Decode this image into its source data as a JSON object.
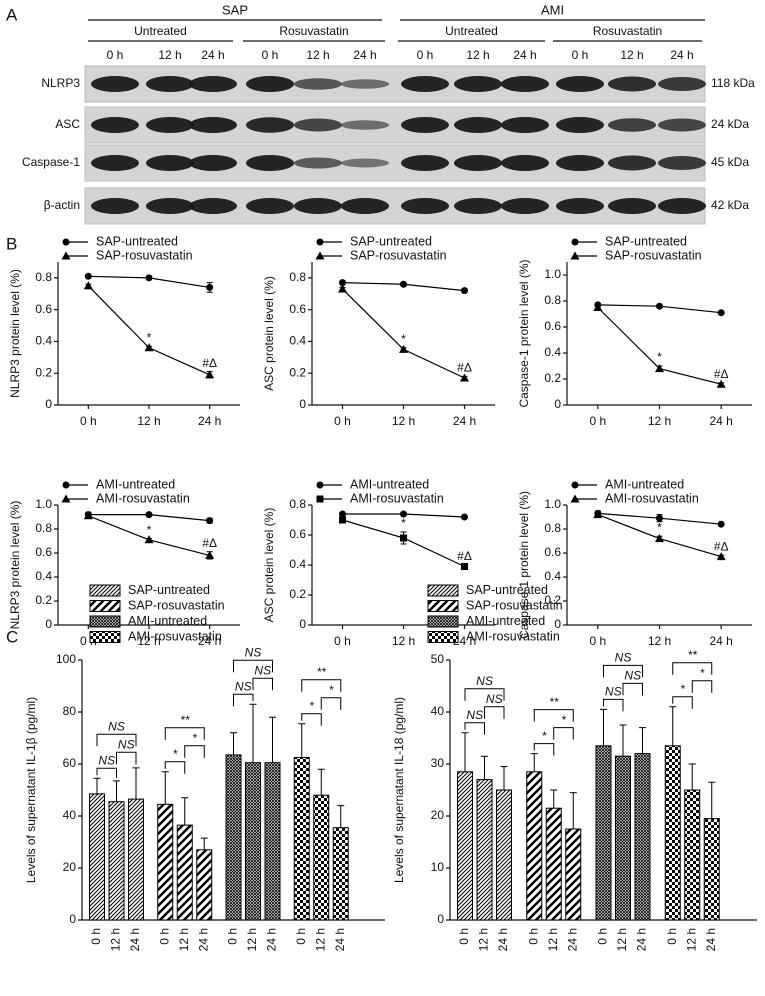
{
  "panels": [
    "A",
    "B",
    "C"
  ],
  "blot": {
    "groups": [
      {
        "label": "SAP",
        "subgroups": [
          {
            "label": "Untreated",
            "times": [
              "0 h",
              "12 h",
              "24 h"
            ]
          },
          {
            "label": "Rosuvastatin",
            "times": [
              "0 h",
              "12 h",
              "24 h"
            ]
          }
        ]
      },
      {
        "label": "AMI",
        "subgroups": [
          {
            "label": "Untreated",
            "times": [
              "0 h",
              "12 h",
              "24 h"
            ]
          },
          {
            "label": "Rosuvastatin",
            "times": [
              "0 h",
              "12 h",
              "24 h"
            ]
          }
        ]
      }
    ],
    "rows": [
      {
        "label": "NLRP3",
        "size": "118 kDa"
      },
      {
        "label": "ASC",
        "size": "24 kDa"
      },
      {
        "label": "Caspase-1",
        "size": "45 kDa"
      },
      {
        "label": "β-actin",
        "size": "42 kDa"
      }
    ]
  },
  "chart_data": [
    {
      "type": "line",
      "ylabel": "NLRP3 protein level (%)",
      "categories": [
        "0 h",
        "12 h",
        "24 h"
      ],
      "ylim": [
        0,
        0.9
      ],
      "yticks": [
        0,
        0.2,
        0.4,
        0.6,
        0.8
      ],
      "series": [
        {
          "name": "SAP-untreated",
          "color": "#000000",
          "marker": "circle",
          "values": [
            0.81,
            0.8,
            0.74
          ],
          "errors": [
            0.01,
            0.01,
            0.03
          ]
        },
        {
          "name": "SAP-rosuvastatin",
          "color": "#000000",
          "marker": "triangle",
          "values": [
            0.75,
            0.36,
            0.19
          ],
          "errors": [
            0.01,
            0.01,
            0.02
          ],
          "point_labels": [
            null,
            "*",
            "#Δ"
          ]
        }
      ]
    },
    {
      "type": "line",
      "ylabel": "ASC protein level (%)",
      "categories": [
        "0 h",
        "12 h",
        "24 h"
      ],
      "ylim": [
        0,
        0.9
      ],
      "yticks": [
        0,
        0.2,
        0.4,
        0.6,
        0.8
      ],
      "series": [
        {
          "name": "SAP-untreated",
          "color": "#000000",
          "marker": "circle",
          "values": [
            0.77,
            0.76,
            0.72
          ],
          "errors": [
            0.01,
            0.01,
            0.01
          ]
        },
        {
          "name": "SAP-rosuvastatin",
          "color": "#000000",
          "marker": "triangle",
          "values": [
            0.73,
            0.35,
            0.17
          ],
          "errors": [
            0.01,
            0.01,
            0.01
          ],
          "point_labels": [
            null,
            "*",
            "#Δ"
          ]
        }
      ]
    },
    {
      "type": "line",
      "ylabel": "Caspase-1 protein level (%)",
      "categories": [
        "0 h",
        "12 h",
        "24 h"
      ],
      "ylim": [
        0,
        1.1
      ],
      "yticks": [
        0,
        0.2,
        0.4,
        0.6,
        0.8,
        {
          "value": 1,
          "label": "1.0"
        }
      ],
      "series": [
        {
          "name": "SAP-untreated",
          "color": "#000000",
          "marker": "circle",
          "values": [
            0.77,
            0.76,
            0.71
          ],
          "errors": [
            0.01,
            0.01,
            0.01
          ]
        },
        {
          "name": "SAP-rosuvastatin",
          "color": "#000000",
          "marker": "triangle",
          "values": [
            0.75,
            0.28,
            0.16
          ],
          "errors": [
            0.01,
            0.02,
            0.01
          ],
          "point_labels": [
            null,
            "*",
            "#Δ"
          ]
        }
      ]
    },
    {
      "type": "line",
      "ylabel": "NLRP3 protein level (%)",
      "categories": [
        "0 h",
        "12 h",
        "24 h"
      ],
      "ylim": [
        0,
        1
      ],
      "yticks": [
        0,
        0.2,
        0.4,
        0.6,
        0.8,
        {
          "value": 1,
          "label": "1.0"
        }
      ],
      "series": [
        {
          "name": "AMI-untreated",
          "color": "#000000",
          "marker": "circle",
          "values": [
            0.92,
            0.92,
            0.87
          ],
          "errors": [
            0.02,
            0.01,
            0.02
          ]
        },
        {
          "name": "AMI-rosuvastatin",
          "color": "#000000",
          "marker": "triangle",
          "values": [
            0.91,
            0.71,
            0.58
          ],
          "errors": [
            0.02,
            0.01,
            0.03
          ],
          "point_labels": [
            null,
            "*",
            "#Δ"
          ]
        }
      ]
    },
    {
      "type": "line",
      "ylabel": "ASC protein level (%)",
      "categories": [
        "0 h",
        "12 h",
        "24 h"
      ],
      "ylim": [
        0,
        0.8
      ],
      "yticks": [
        0,
        0.2,
        0.4,
        0.6,
        0.8
      ],
      "series": [
        {
          "name": "AMI-untreated",
          "color": "#000000",
          "marker": "circle",
          "values": [
            0.74,
            0.74,
            0.72
          ],
          "errors": [
            0.01,
            0.01,
            0.01
          ]
        },
        {
          "name": "AMI-rosuvastatin",
          "color": "#000000",
          "marker": "square",
          "values": [
            0.7,
            0.58,
            0.39
          ],
          "errors": [
            0.01,
            0.04,
            0.01
          ],
          "point_labels": [
            null,
            "*",
            "#Δ"
          ]
        }
      ]
    },
    {
      "type": "line",
      "ylabel": "Caspase-1 protein level (%)",
      "categories": [
        "0 h",
        "12 h",
        "24 h"
      ],
      "ylim": [
        0,
        1
      ],
      "yticks": [
        0,
        0.2,
        0.4,
        0.6,
        0.8,
        {
          "value": 1,
          "label": "1.0"
        }
      ],
      "series": [
        {
          "name": "AMI-untreated",
          "color": "#000000",
          "marker": "circle",
          "values": [
            0.93,
            0.89,
            0.84
          ],
          "errors": [
            0.02,
            0.03,
            0.01
          ]
        },
        {
          "name": "AMI-rosuvastatin",
          "color": "#000000",
          "marker": "triangle",
          "values": [
            0.92,
            0.72,
            0.57
          ],
          "errors": [
            0.02,
            0.02,
            0.01
          ],
          "point_labels": [
            null,
            "*",
            "#Δ"
          ]
        }
      ]
    },
    {
      "type": "bar",
      "ylabel": "Levels of supernatant IL-1β (pg/ml)",
      "categories": [
        "0 h",
        "12 h",
        "24 h"
      ],
      "ylim": [
        0,
        100
      ],
      "yticks": [
        0,
        20,
        40,
        60,
        80,
        100
      ],
      "series": [
        {
          "name": "SAP-untreated",
          "color": "#000000",
          "pattern": "diagonal",
          "values": [
            48.5,
            45.5,
            46.5
          ],
          "errors": [
            6,
            8,
            12
          ],
          "significance": [
            "NS",
            "NS",
            "NS"
          ]
        },
        {
          "name": "SAP-rosuvastatin",
          "color": "#000000",
          "pattern": "wide",
          "values": [
            44.5,
            36.5,
            27
          ],
          "errors": [
            12.5,
            10.5,
            4.5
          ],
          "significance": [
            "*",
            "*",
            "**"
          ]
        },
        {
          "name": "AMI-untreated",
          "color": "#000000",
          "pattern": "cross",
          "values": [
            63.5,
            60.5,
            60.5
          ],
          "errors": [
            8.5,
            22.5,
            17.5
          ],
          "significance": [
            "NS",
            "NS",
            "NS"
          ]
        },
        {
          "name": "AMI-rosuvastatin",
          "color": "#000000",
          "pattern": "checker",
          "values": [
            62.5,
            48,
            35.5
          ],
          "errors": [
            13,
            10,
            8.5
          ],
          "significance": [
            "*",
            "*",
            "**"
          ]
        }
      ]
    },
    {
      "type": "bar",
      "ylabel": "Levels of supernatant IL-18 (pg/ml)",
      "categories": [
        "0 h",
        "12 h",
        "24 h"
      ],
      "ylim": [
        0,
        50
      ],
      "yticks": [
        0,
        10,
        20,
        30,
        40,
        50
      ],
      "series": [
        {
          "name": "SAP-untreated",
          "color": "#000000",
          "pattern": "diagonal",
          "values": [
            28.5,
            27,
            25
          ],
          "errors": [
            7.5,
            4.5,
            4.5
          ],
          "significance": [
            "NS",
            "NS",
            "NS"
          ]
        },
        {
          "name": "SAP-rosuvastatin",
          "color": "#000000",
          "pattern": "wide",
          "values": [
            28.5,
            21.5,
            17.5
          ],
          "errors": [
            3.5,
            3.5,
            7
          ],
          "significance": [
            "*",
            "*",
            "**"
          ]
        },
        {
          "name": "AMI-untreated",
          "color": "#000000",
          "pattern": "cross",
          "values": [
            33.5,
            31.5,
            32
          ],
          "errors": [
            7,
            6,
            5
          ],
          "significance": [
            "NS",
            "NS",
            "NS"
          ]
        },
        {
          "name": "AMI-rosuvastatin",
          "color": "#000000",
          "pattern": "checker",
          "values": [
            33.5,
            25,
            19.5
          ],
          "errors": [
            7.5,
            5,
            7
          ],
          "significance": [
            "*",
            "*",
            "**"
          ]
        }
      ]
    }
  ]
}
